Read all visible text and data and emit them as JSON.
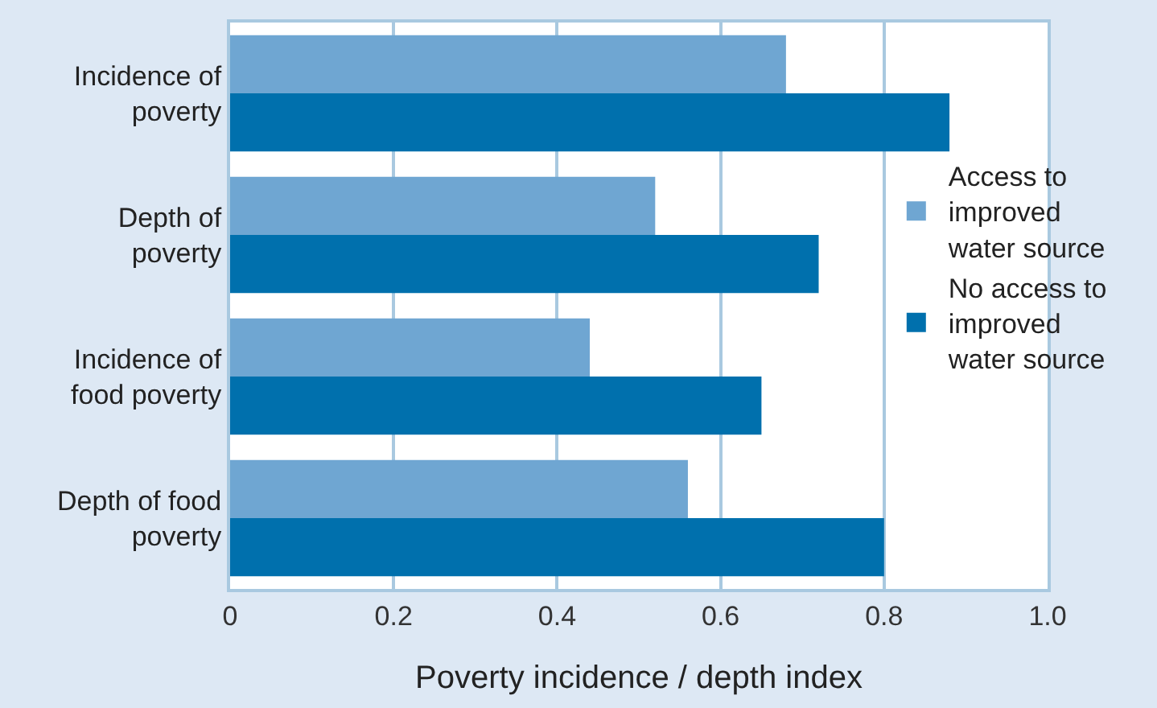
{
  "chart_data": {
    "type": "bar",
    "orientation": "horizontal",
    "categories": [
      "Incidence of poverty",
      "Depth of poverty",
      "Incidence of food poverty",
      "Depth of food poverty"
    ],
    "series": [
      {
        "name": "Access to improved water source",
        "color": "#6fa6d2",
        "values": [
          0.68,
          0.52,
          0.44,
          0.56
        ]
      },
      {
        "name": "No access to improved water source",
        "color": "#0070ad",
        "values": [
          0.88,
          0.72,
          0.65,
          0.8
        ]
      }
    ],
    "xlabel": "Poverty incidence / depth index",
    "xlim": [
      0,
      1
    ],
    "xticks": [
      0,
      0.2,
      0.4,
      0.6,
      0.8,
      {
        "value": 1,
        "label": "1.0"
      }
    ],
    "grid": "x",
    "legend": "right"
  }
}
